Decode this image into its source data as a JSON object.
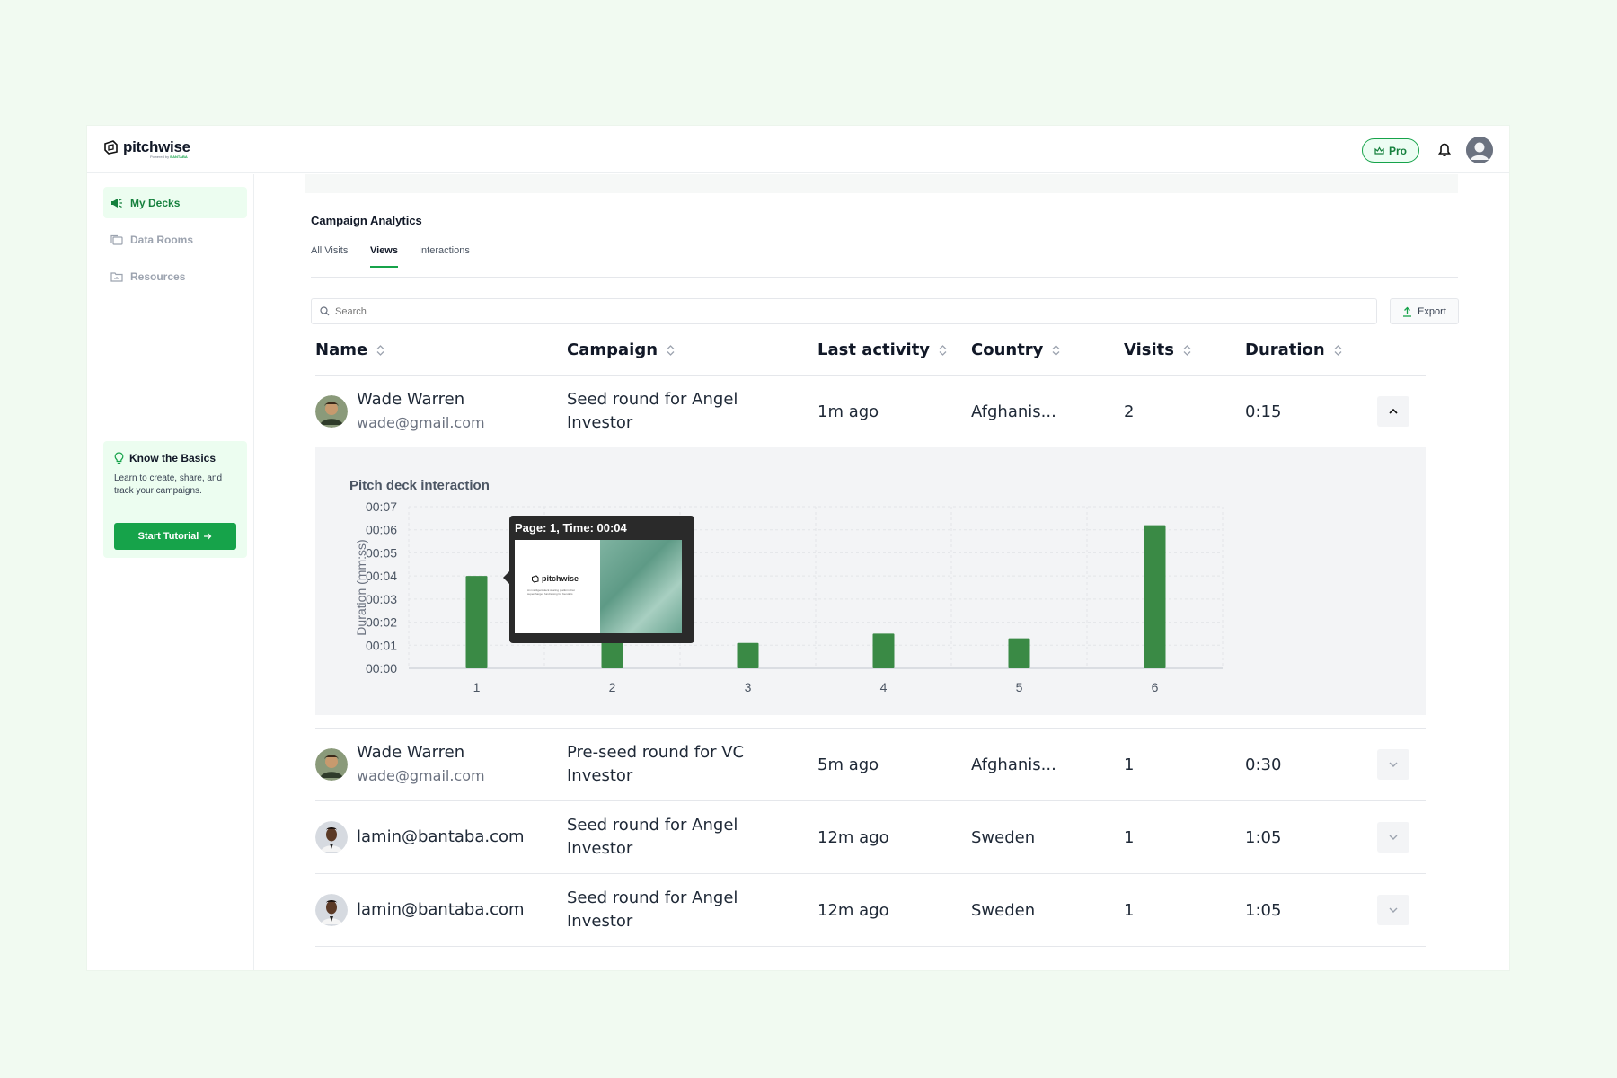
{
  "brand": {
    "name": "pitchwise",
    "powered_by": "Powered by",
    "powered_brand": "BANTABA"
  },
  "header": {
    "pro_label": "Pro"
  },
  "sidebar": {
    "items": [
      {
        "label": "My Decks",
        "active": true
      },
      {
        "label": "Data Rooms",
        "active": false
      },
      {
        "label": "Resources",
        "active": false
      }
    ],
    "basics": {
      "title": "Know the Basics",
      "description": "Learn to create, share, and track your campaigns.",
      "button": "Start Tutorial"
    }
  },
  "main": {
    "title": "Campaign Analytics",
    "tabs": [
      {
        "label": "All Visits",
        "active": false
      },
      {
        "label": "Views",
        "active": true
      },
      {
        "label": "Interactions",
        "active": false
      }
    ],
    "search_placeholder": "Search",
    "export_label": "Export"
  },
  "table": {
    "columns": [
      "Name",
      "Campaign",
      "Last activity",
      "Country",
      "Visits",
      "Duration"
    ],
    "rows": [
      {
        "name": "Wade Warren",
        "email": "wade@gmail.com",
        "campaign": "Seed round for Angel Investor",
        "last_activity": "1m ago",
        "country": "Afghanis...",
        "visits": "2",
        "duration": "0:15",
        "expanded": true
      },
      {
        "name": "Wade Warren",
        "email": "wade@gmail.com",
        "campaign": "Pre-seed round for VC Investor",
        "last_activity": "5m ago",
        "country": "Afghanis...",
        "visits": "1",
        "duration": "0:30",
        "expanded": false
      },
      {
        "name": "lamin@bantaba.com",
        "email": "",
        "campaign": "Seed round for Angel Investor",
        "last_activity": "12m ago",
        "country": "Sweden",
        "visits": "1",
        "duration": "1:05",
        "expanded": false
      },
      {
        "name": "lamin@bantaba.com",
        "email": "",
        "campaign": "Seed round for Angel Investor",
        "last_activity": "12m ago",
        "country": "Sweden",
        "visits": "1",
        "duration": "1:05",
        "expanded": false
      }
    ]
  },
  "chart_data": {
    "type": "bar",
    "title": "Pitch deck interaction",
    "ylabel": "Duration (mm:ss)",
    "xlabel": "",
    "categories": [
      "1",
      "2",
      "3",
      "4",
      "5",
      "6"
    ],
    "values": [
      4,
      4,
      1.1,
      1.5,
      1.3,
      6.2
    ],
    "yticks": [
      "00:00",
      "00:01",
      "00:02",
      "00:03",
      "00:04",
      "00:05",
      "00:06",
      "00:07"
    ],
    "ylim": [
      0,
      7
    ],
    "grid": true,
    "color": "#3a8a45",
    "tooltip": {
      "text": "Page: 1, Time: 00:04"
    }
  },
  "tooltip_slide": {
    "brand": "pitchwise",
    "caption": "An intelligent deck sharing platform that supercharges fundraising for founders"
  },
  "colors": {
    "accent": "#16a34a",
    "accent_bg": "#ecfdf0",
    "bar": "#3a8a45"
  }
}
